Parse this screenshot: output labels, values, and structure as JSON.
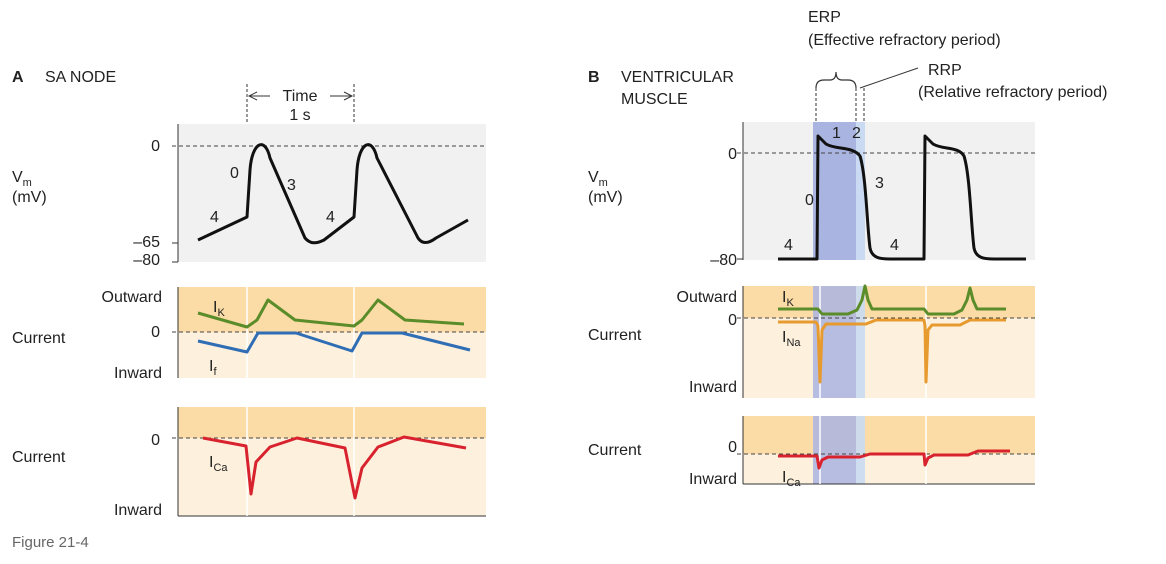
{
  "panel_a": {
    "letter": "A",
    "title": "SA NODE",
    "time_label": "Time",
    "time_value": "1 s",
    "vm_axis": {
      "label": "V",
      "sub": "m",
      "unit": "(mV)",
      "ticks": [
        "0",
        "–65",
        "–80"
      ]
    },
    "phases": [
      "0",
      "3",
      "4",
      "4"
    ],
    "current_k_f": {
      "axis_label": "Current",
      "outward": "Outward",
      "zero": "0",
      "inward": "Inward",
      "ik": {
        "main": "I",
        "sub": "K"
      },
      "if": {
        "main": "I",
        "sub": "f"
      }
    },
    "current_ca": {
      "axis_label": "Current",
      "zero": "0",
      "inward": "Inward",
      "ica": {
        "main": "I",
        "sub": "Ca"
      }
    }
  },
  "panel_b": {
    "letter": "B",
    "title_line1": "VENTRICULAR",
    "title_line2": "MUSCLE",
    "erp": {
      "abbr": "ERP",
      "full": "(Effective refractory period)"
    },
    "rrp": {
      "abbr": "RRP",
      "full": "(Relative refractory period)"
    },
    "vm_axis": {
      "label": "V",
      "sub": "m",
      "unit": "(mV)",
      "ticks": [
        "0",
        "–80"
      ]
    },
    "phases": [
      "0",
      "1",
      "2",
      "3",
      "4",
      "4"
    ],
    "current_k_na": {
      "axis_label": "Current",
      "outward": "Outward",
      "zero": "0",
      "inward": "Inward",
      "ik": {
        "main": "I",
        "sub": "K"
      },
      "ina": {
        "main": "I",
        "sub": "Na"
      }
    },
    "current_ca": {
      "axis_label": "Current",
      "zero": "0",
      "inward": "Inward",
      "ica": {
        "main": "I",
        "sub": "Ca"
      }
    }
  },
  "caption": "Figure 21-4",
  "colors": {
    "plot_bg": "#f1f1f1",
    "outward_band": "#fbdca6",
    "inward_band": "#fdf1dd",
    "erp_band": "#aab4e0",
    "rrp_band": "#c9daf2",
    "vm_trace": "#111111",
    "ik_trace": "#5b8c2a",
    "if_trace": "#2f6db5",
    "ina_trace": "#e79a2e",
    "ica_trace": "#d8232f"
  }
}
